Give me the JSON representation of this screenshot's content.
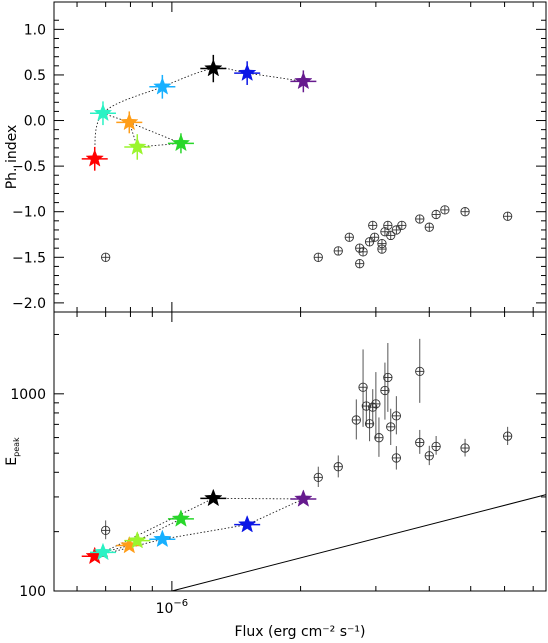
{
  "chart_data": [
    {
      "type": "scatter",
      "panel": "top",
      "ylabel": "Ph. index",
      "ylim": [
        -2.1,
        1.3
      ],
      "yticks": [
        "1.0",
        "0.5",
        "0.0",
        "−0.5",
        "−1.0",
        "−1.5",
        "−2.0"
      ],
      "ytick_values": [
        1.0,
        0.5,
        0.0,
        -0.5,
        -1.0,
        -1.5,
        -2.0
      ],
      "x_scale": "log",
      "xlim": [
        5.3e-07,
        7.5e-06
      ],
      "series": [
        {
          "marker": "star",
          "points": [
            {
              "x": 6.6e-07,
              "y": -0.42,
              "ylo": 0.13,
              "yhi": 0.13,
              "color": "#ff0000"
            },
            {
              "x": 6.9e-07,
              "y": 0.08,
              "ylo": 0.13,
              "yhi": 0.13,
              "color": "#29f2c4"
            },
            {
              "x": 7.95e-07,
              "y": -0.02,
              "ylo": 0.12,
              "yhi": 0.12,
              "color": "#ff9d18"
            },
            {
              "x": 8.3e-07,
              "y": -0.29,
              "ylo": 0.14,
              "yhi": 0.14,
              "color": "#9af52d"
            },
            {
              "x": 9.5e-07,
              "y": 0.37,
              "ylo": 0.13,
              "yhi": 0.13,
              "color": "#17b0ff"
            },
            {
              "x": 1.05e-06,
              "y": -0.25,
              "ylo": 0.11,
              "yhi": 0.11,
              "color": "#28d72a"
            },
            {
              "x": 1.25e-06,
              "y": 0.57,
              "ylo": 0.15,
              "yhi": 0.15,
              "color": "#000000"
            },
            {
              "x": 1.5e-06,
              "y": 0.52,
              "ylo": 0.13,
              "yhi": 0.13,
              "color": "#0b16e6"
            },
            {
              "x": 2.03e-06,
              "y": 0.43,
              "ylo": 0.12,
              "yhi": 0.12,
              "color": "#661a8e"
            }
          ],
          "path_order": [
            0,
            1,
            4,
            6,
            7,
            8
          ],
          "branch_links": [
            [
              1,
              2
            ],
            [
              2,
              3
            ],
            [
              2,
              5
            ],
            [
              3,
              5
            ]
          ]
        },
        {
          "marker": "circle-plus",
          "points": [
            {
              "x": 7e-07,
              "y": -1.5
            },
            {
              "x": 2.2e-06,
              "y": -1.5
            },
            {
              "x": 2.45e-06,
              "y": -1.43
            },
            {
              "x": 2.6e-06,
              "y": -1.28
            },
            {
              "x": 2.75e-06,
              "y": -1.4
            },
            {
              "x": 2.75e-06,
              "y": -1.57
            },
            {
              "x": 2.8e-06,
              "y": -1.44
            },
            {
              "x": 2.9e-06,
              "y": -1.33
            },
            {
              "x": 2.95e-06,
              "y": -1.15
            },
            {
              "x": 2.98e-06,
              "y": -1.28
            },
            {
              "x": 3.1e-06,
              "y": -1.35
            },
            {
              "x": 3.1e-06,
              "y": -1.41
            },
            {
              "x": 3.15e-06,
              "y": -1.22
            },
            {
              "x": 3.2e-06,
              "y": -1.15
            },
            {
              "x": 3.25e-06,
              "y": -1.26
            },
            {
              "x": 3.35e-06,
              "y": -1.2
            },
            {
              "x": 3.45e-06,
              "y": -1.15
            },
            {
              "x": 3.8e-06,
              "y": -1.08
            },
            {
              "x": 4e-06,
              "y": -1.17
            },
            {
              "x": 4.15e-06,
              "y": -1.03
            },
            {
              "x": 4.35e-06,
              "y": -0.98
            },
            {
              "x": 4.85e-06,
              "y": -1.0
            },
            {
              "x": 6.1e-06,
              "y": -1.05
            }
          ]
        }
      ]
    },
    {
      "type": "scatter",
      "panel": "bottom",
      "ylabel_main": "E",
      "ylabel_sub": "peak",
      "xlabel": "Flux (erg cm⁻² s⁻¹)",
      "x_scale": "log",
      "y_scale": "log",
      "xlim": [
        5.3e-07,
        7.5e-06
      ],
      "ylim": [
        100,
        2600
      ],
      "yticks": [
        "1000",
        "100"
      ],
      "ytick_values": [
        1000,
        100
      ],
      "xticks": [
        {
          "base": "10",
          "exponent": "−6",
          "value": 1e-06
        }
      ],
      "series": [
        {
          "marker": "star",
          "points": [
            {
              "x": 6.6e-07,
              "y": 150,
              "color": "#ff0000"
            },
            {
              "x": 6.9e-07,
              "y": 157,
              "color": "#29f2c4"
            },
            {
              "x": 7.95e-07,
              "y": 170,
              "color": "#ff9d18"
            },
            {
              "x": 8.3e-07,
              "y": 180,
              "color": "#9af52d"
            },
            {
              "x": 9.5e-07,
              "y": 183,
              "color": "#17b0ff"
            },
            {
              "x": 1.05e-06,
              "y": 232,
              "color": "#28d72a"
            },
            {
              "x": 1.25e-06,
              "y": 295,
              "color": "#000000"
            },
            {
              "x": 1.5e-06,
              "y": 217,
              "color": "#0b16e6"
            },
            {
              "x": 2.03e-06,
              "y": 293,
              "color": "#661a8e"
            }
          ],
          "path_order": [
            0,
            1,
            2,
            3,
            5
          ],
          "extra_links": [
            [
              0,
              4
            ],
            [
              4,
              7
            ],
            [
              7,
              8
            ],
            [
              1,
              6
            ],
            [
              6,
              8
            ]
          ]
        },
        {
          "marker": "circle-plus",
          "points": [
            {
              "x": 7e-07,
              "y": 203,
              "ylo": 20,
              "yhi": 25
            },
            {
              "x": 2.2e-06,
              "y": 377,
              "ylo": 40,
              "yhi": 50
            },
            {
              "x": 2.45e-06,
              "y": 427,
              "ylo": 50,
              "yhi": 60
            },
            {
              "x": 2.7e-06,
              "y": 737,
              "ylo": 150,
              "yhi": 200
            },
            {
              "x": 2.8e-06,
              "y": 1080,
              "ylo": 400,
              "yhi": 600
            },
            {
              "x": 2.85e-06,
              "y": 867,
              "ylo": 180,
              "yhi": 220
            },
            {
              "x": 2.9e-06,
              "y": 705,
              "ylo": 130,
              "yhi": 170
            },
            {
              "x": 2.95e-06,
              "y": 856,
              "ylo": 170,
              "yhi": 200
            },
            {
              "x": 3e-06,
              "y": 889,
              "ylo": 300,
              "yhi": 400
            },
            {
              "x": 3.05e-06,
              "y": 599,
              "ylo": 120,
              "yhi": 160
            },
            {
              "x": 3.15e-06,
              "y": 1040,
              "ylo": 300,
              "yhi": 400
            },
            {
              "x": 3.2e-06,
              "y": 1210,
              "ylo": 400,
              "yhi": 600
            },
            {
              "x": 3.25e-06,
              "y": 680,
              "ylo": 130,
              "yhi": 160
            },
            {
              "x": 3.35e-06,
              "y": 773,
              "ylo": 150,
              "yhi": 200
            },
            {
              "x": 3.35e-06,
              "y": 473,
              "ylo": 60,
              "yhi": 70
            },
            {
              "x": 3.8e-06,
              "y": 1300,
              "ylo": 400,
              "yhi": 600
            },
            {
              "x": 3.8e-06,
              "y": 566,
              "ylo": 70,
              "yhi": 90
            },
            {
              "x": 4e-06,
              "y": 485,
              "ylo": 50,
              "yhi": 60
            },
            {
              "x": 4.15e-06,
              "y": 541,
              "ylo": 50,
              "yhi": 70
            },
            {
              "x": 4.85e-06,
              "y": 531,
              "ylo": 50,
              "yhi": 60
            },
            {
              "x": 6.1e-06,
              "y": 610,
              "ylo": 60,
              "yhi": 70
            }
          ]
        }
      ],
      "reference_line": {
        "x": [
          1e-06,
          7.5e-06
        ],
        "y": [
          100,
          308
        ]
      }
    }
  ]
}
